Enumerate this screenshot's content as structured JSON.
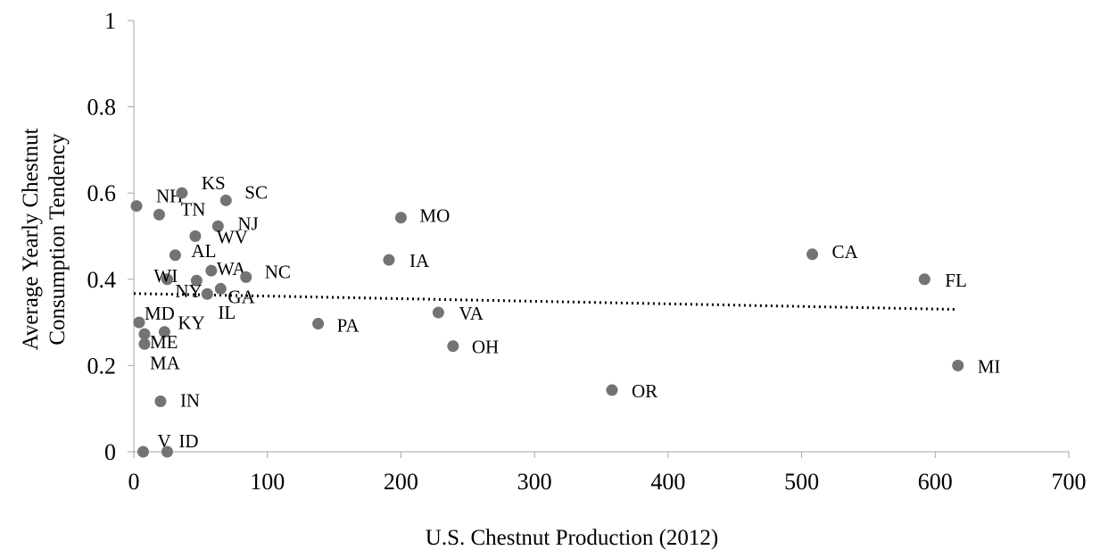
{
  "chart_data": {
    "type": "scatter",
    "xlabel": "U.S. Chestnut Production (2012)",
    "ylabel_lines": [
      "Average Yearly Chestnut",
      "Consumption Tendency"
    ],
    "xlim": [
      0,
      700
    ],
    "ylim": [
      0,
      1
    ],
    "x_ticks": [
      0,
      100,
      200,
      300,
      400,
      500,
      600,
      700
    ],
    "y_ticks": [
      0,
      0.2,
      0.4,
      0.6,
      0.8,
      1
    ],
    "y_tick_labels": [
      "0",
      "0.2",
      "0.4",
      "0.6",
      "0.8",
      "1"
    ],
    "grid": false,
    "point_color": "#737373",
    "points": [
      {
        "label": "NH",
        "x": 2,
        "y": 0.57
      },
      {
        "label": "TN",
        "x": 19,
        "y": 0.55
      },
      {
        "label": "KS",
        "x": 36,
        "y": 0.6
      },
      {
        "label": "SC",
        "x": 69,
        "y": 0.583
      },
      {
        "label": "NJ",
        "x": 63,
        "y": 0.523
      },
      {
        "label": "WV",
        "x": 46,
        "y": 0.5
      },
      {
        "label": "AL",
        "x": 31,
        "y": 0.456
      },
      {
        "label": "WA",
        "x": 58,
        "y": 0.42
      },
      {
        "label": "WI",
        "x": 25,
        "y": 0.4
      },
      {
        "label": "NY",
        "x": 47,
        "y": 0.397
      },
      {
        "label": "NC",
        "x": 84,
        "y": 0.405
      },
      {
        "label": "GA",
        "x": 65,
        "y": 0.378
      },
      {
        "label": "IL",
        "x": 55,
        "y": 0.366
      },
      {
        "label": "MD",
        "x": 4,
        "y": 0.3
      },
      {
        "label": "KY",
        "x": 23,
        "y": 0.278
      },
      {
        "label": "ME",
        "x": 8,
        "y": 0.273
      },
      {
        "label": "MA",
        "x": 8,
        "y": 0.25
      },
      {
        "label": "IN",
        "x": 20,
        "y": 0.117
      },
      {
        "label": "V",
        "x": 7,
        "y": 0.0
      },
      {
        "label": "ID",
        "x": 25,
        "y": 0.0
      },
      {
        "label": "MO",
        "x": 200,
        "y": 0.543
      },
      {
        "label": "IA",
        "x": 191,
        "y": 0.445
      },
      {
        "label": "PA",
        "x": 138,
        "y": 0.297
      },
      {
        "label": "VA",
        "x": 228,
        "y": 0.323
      },
      {
        "label": "OH",
        "x": 239,
        "y": 0.245
      },
      {
        "label": "OR",
        "x": 358,
        "y": 0.143
      },
      {
        "label": "CA",
        "x": 508,
        "y": 0.458
      },
      {
        "label": "FL",
        "x": 592,
        "y": 0.4
      },
      {
        "label": "MI",
        "x": 617,
        "y": 0.2
      }
    ],
    "trendline": {
      "style": "dotted",
      "color": "#000000",
      "x": [
        0,
        617
      ],
      "y": [
        0.367,
        0.33
      ]
    }
  }
}
